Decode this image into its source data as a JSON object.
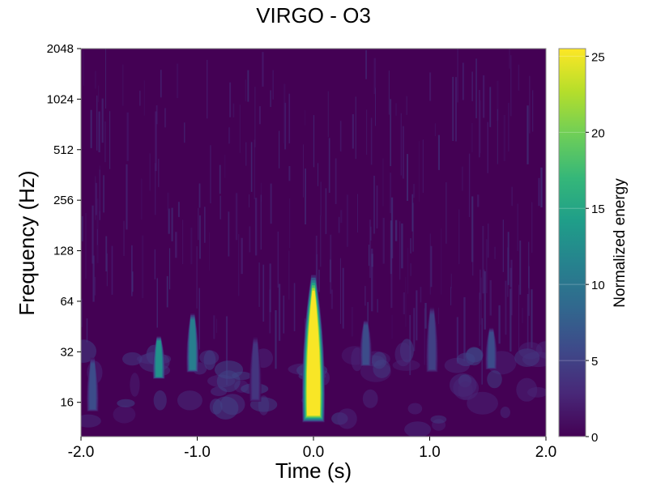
{
  "chart_data": {
    "type": "heatmap",
    "title": "VIRGO - O3",
    "xlabel": "Time (s)",
    "ylabel": "Frequency (Hz)",
    "xlim": [
      -2.0,
      2.0
    ],
    "ylim": [
      10,
      2048
    ],
    "yscale": "log2",
    "xticks": [
      -2.0,
      -1.0,
      0.0,
      1.0,
      2.0
    ],
    "xtick_labels": [
      "-2.0",
      "-1.0",
      "0.0",
      "1.0",
      "2.0"
    ],
    "yticks": [
      16,
      32,
      64,
      128,
      256,
      512,
      1024,
      2048
    ],
    "ytick_labels": [
      "16",
      "32",
      "64",
      "128",
      "256",
      "512",
      "1024",
      "2048"
    ],
    "colorbar": {
      "label": "Normalized energy",
      "range": [
        0,
        25.5
      ],
      "ticks": [
        0,
        5,
        10,
        15,
        20,
        25
      ],
      "tick_labels": [
        "0",
        "5",
        "10",
        "15",
        "20",
        "25"
      ],
      "colormap": "viridis",
      "stops": [
        "#440154",
        "#482878",
        "#3e4989",
        "#31688e",
        "#26828e",
        "#1f9e89",
        "#35b779",
        "#6ece58",
        "#b5de2b",
        "#fde725"
      ]
    },
    "blobs": [
      {
        "t": 0.0,
        "f_low": 12,
        "f_high": 95,
        "peak": 25.5,
        "saturated": true
      },
      {
        "t": -1.33,
        "f_low": 22,
        "f_high": 40,
        "peak": 13
      },
      {
        "t": -1.04,
        "f_low": 24,
        "f_high": 55,
        "peak": 11
      },
      {
        "t": -1.9,
        "f_low": 14,
        "f_high": 30,
        "peak": 6
      },
      {
        "t": 0.45,
        "f_low": 26,
        "f_high": 50,
        "peak": 6
      },
      {
        "t": 1.02,
        "f_low": 24,
        "f_high": 60,
        "peak": 5
      },
      {
        "t": 1.53,
        "f_low": 25,
        "f_high": 45,
        "peak": 6
      },
      {
        "t": -0.5,
        "f_low": 16,
        "f_high": 40,
        "peak": 4
      }
    ]
  }
}
